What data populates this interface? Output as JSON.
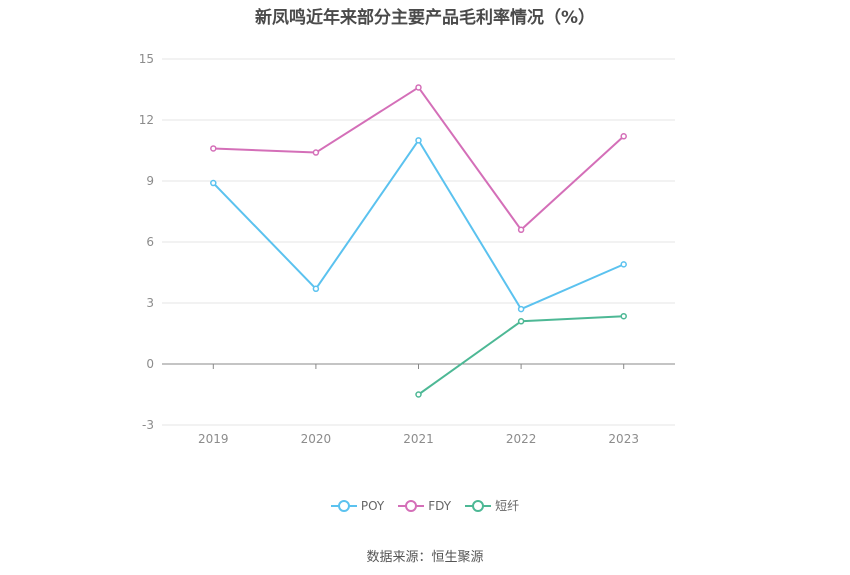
{
  "chart_data": {
    "type": "line",
    "title": "新凤鸣近年来部分主要产品毛利率情况（%）",
    "categories": [
      "2019",
      "2020",
      "2021",
      "2022",
      "2023"
    ],
    "y_ticks": [
      "15",
      "12",
      "9",
      "6",
      "3",
      "0",
      "-3"
    ],
    "ylim": [
      -3,
      15
    ],
    "grid": true,
    "legend_position": "bottom",
    "series": [
      {
        "name": "POY",
        "color": "#5bc2ef",
        "values": [
          8.9,
          3.7,
          11.0,
          2.7,
          4.9
        ]
      },
      {
        "name": "FDY",
        "color": "#d46fb8",
        "values": [
          10.6,
          10.4,
          13.6,
          6.6,
          11.2
        ]
      },
      {
        "name": "短纤",
        "color": "#4db895",
        "values": [
          null,
          null,
          -1.5,
          2.1,
          2.35
        ]
      }
    ]
  },
  "source_note": "数据来源：恒生聚源"
}
